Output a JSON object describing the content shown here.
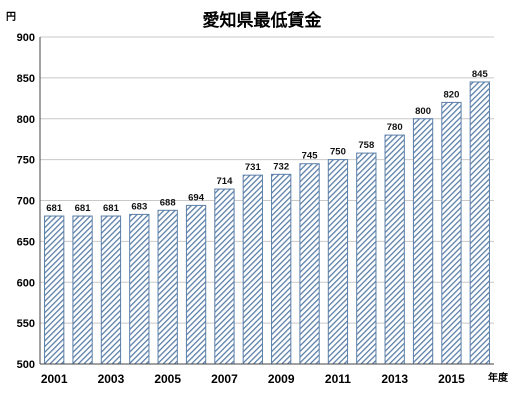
{
  "chart_data": {
    "type": "bar",
    "title": "愛知県最低賃金",
    "ylabel": "円",
    "xlabel": "年度",
    "ylim": [
      500,
      900
    ],
    "yticks": [
      500,
      550,
      600,
      650,
      700,
      750,
      800,
      850,
      900
    ],
    "grid": true,
    "categories": [
      "2001",
      "2002",
      "2003",
      "2004",
      "2005",
      "2006",
      "2007",
      "2008",
      "2009",
      "2010",
      "2011",
      "2012",
      "2013",
      "2014",
      "2015",
      "2016"
    ],
    "xtick_labels_shown": [
      "2001",
      "2003",
      "2005",
      "2007",
      "2009",
      "2011",
      "2013",
      "2015"
    ],
    "values": [
      681,
      681,
      681,
      683,
      688,
      694,
      714,
      731,
      732,
      745,
      750,
      758,
      780,
      800,
      820,
      845
    ],
    "bar_color": "#5b7fa8"
  }
}
